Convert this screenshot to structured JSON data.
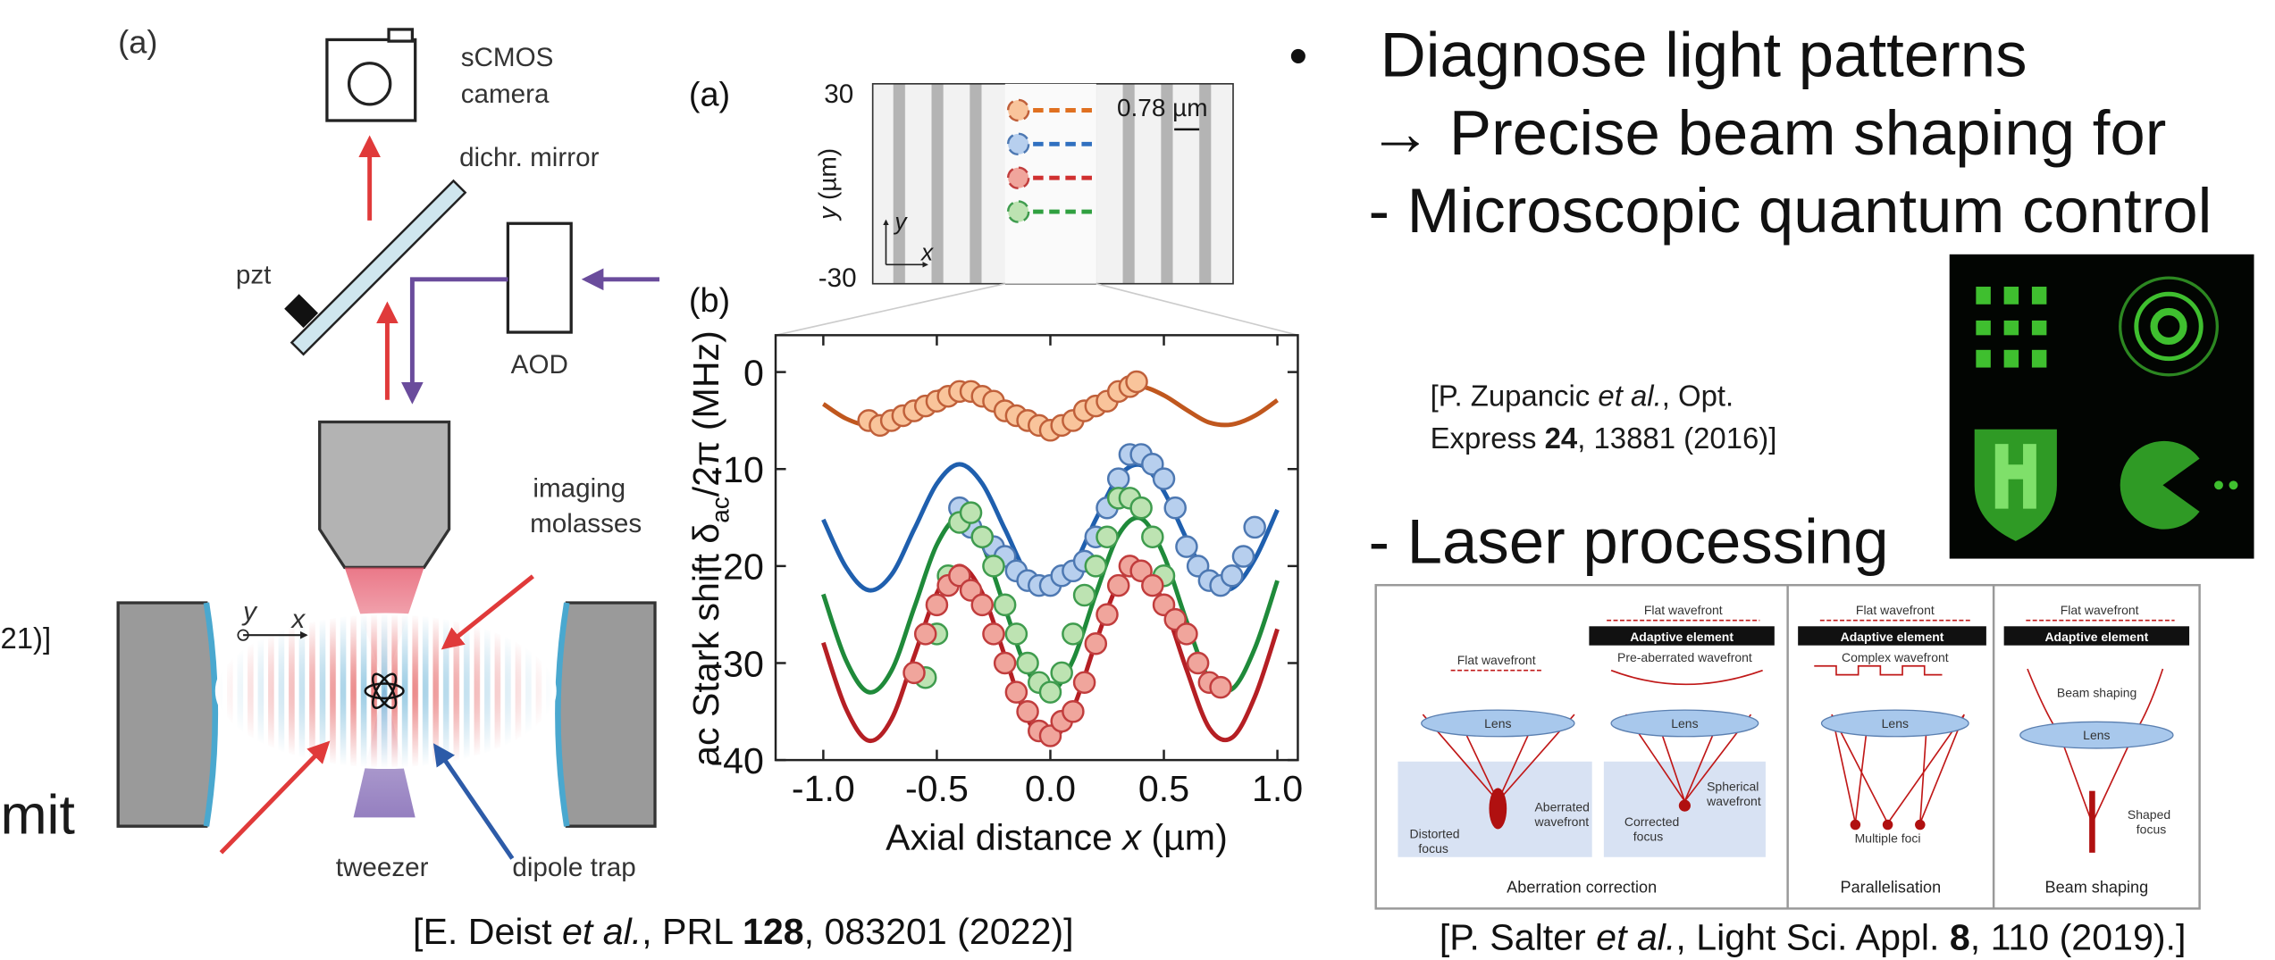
{
  "left_edge": {
    "fragment_1": "21)]",
    "fragment_2": "mit"
  },
  "schematic": {
    "panel": "(a)",
    "camera_1": "sCMOS",
    "camera_2": "camera",
    "mirror": "dichr. mirror",
    "pzt": "pzt",
    "aod": "AOD",
    "molasses_1": "imaging",
    "molasses_2": "molasses",
    "tweezer": "tweezer",
    "dipole_trap": "dipole trap",
    "axis_y": "y",
    "axis_x": "x"
  },
  "inset": {
    "panel": "(a)",
    "ytick_top": "30",
    "ytick_bottom": "-30",
    "ylabel_var": "y",
    "ylabel_unit": " (µm)",
    "spacing": "0.78 µm",
    "axis_y": "y",
    "axis_x": "x"
  },
  "chart_data": {
    "type": "scatter",
    "panel": "(b)",
    "xlabel": [
      "Axial distance ",
      "x",
      " (µm)"
    ],
    "ylabel": [
      "ac Stark shift  δ",
      "ac",
      "/2π (MHz)"
    ],
    "xlim": [
      -1.21,
      1.09
    ],
    "ylim": [
      -40,
      3.8
    ],
    "xticks": [
      {
        "value": -1,
        "label": "-1.0"
      },
      {
        "value": -0.5,
        "label": "-0.5"
      },
      {
        "value": 0,
        "label": "0.0"
      },
      {
        "value": 0.5,
        "label": "0.5"
      },
      {
        "value": 1,
        "label": "1.0"
      }
    ],
    "yticks": [
      0,
      -10,
      -20,
      -30,
      -40
    ],
    "fit_x": [
      -1,
      -0.9,
      -0.8,
      -0.7,
      -0.6,
      -0.5,
      -0.4,
      -0.3,
      -0.2,
      -0.1,
      0,
      0.1,
      0.2,
      0.3,
      0.4,
      0.5,
      0.6,
      0.7,
      0.8,
      0.9,
      1
    ],
    "fits": [
      {
        "color": "#c0571e",
        "values": [
          -3.3,
          -4.8,
          -5.5,
          -5.0,
          -3.6,
          -2.1,
          -1.5,
          -2.1,
          -3.6,
          -5.0,
          -5.5,
          -4.8,
          -3.3,
          -1.9,
          -1.5,
          -2.4,
          -3.9,
          -5.2,
          -5.4,
          -4.5,
          -2.9
        ]
      },
      {
        "color": "#1f5fae",
        "values": [
          -15.2,
          -20.1,
          -22.5,
          -20.9,
          -16.2,
          -11.5,
          -9.5,
          -11.5,
          -16.2,
          -20.9,
          -22.5,
          -20.1,
          -15.2,
          -10.8,
          -9.6,
          -12.3,
          -17.2,
          -21.5,
          -22.3,
          -19.3,
          -14.2
        ]
      },
      {
        "color": "#1f8a3a",
        "values": [
          -22.9,
          -29.7,
          -33,
          -30.8,
          -24.3,
          -17.8,
          -15,
          -17.8,
          -24.3,
          -30.8,
          -33,
          -29.7,
          -22.9,
          -16.8,
          -15.1,
          -18.9,
          -25.7,
          -31.7,
          -32.7,
          -28.5,
          -21.5
        ]
      },
      {
        "color": "#b51f24",
        "values": [
          -27.9,
          -34.7,
          -38,
          -35.8,
          -29.3,
          -22.8,
          -20,
          -22.8,
          -29.3,
          -35.8,
          -38,
          -34.7,
          -27.9,
          -21.8,
          -20.1,
          -23.9,
          -30.7,
          -36.7,
          -37.7,
          -33.5,
          -26.5
        ]
      }
    ],
    "series": [
      {
        "color": "#f9c49b",
        "edge": "#c0603a",
        "x": [
          -0.8,
          -0.75,
          -0.7,
          -0.65,
          -0.6,
          -0.55,
          -0.5,
          -0.45,
          -0.4,
          -0.35,
          -0.3,
          -0.25,
          -0.2,
          -0.15,
          -0.1,
          -0.05,
          0,
          0.05,
          0.1,
          0.15,
          0.2,
          0.25,
          0.3,
          0.35,
          0.38
        ],
        "values": [
          -5,
          -5.5,
          -5,
          -4.5,
          -4,
          -3.5,
          -3,
          -2.5,
          -2,
          -2,
          -2.5,
          -3,
          -4,
          -4.5,
          -5,
          -5.5,
          -6,
          -5.5,
          -5,
          -4,
          -3.5,
          -3,
          -2,
          -1.5,
          -1
        ]
      },
      {
        "color": "#b7cfee",
        "edge": "#4d78b2",
        "x": [
          -0.4,
          -0.35,
          -0.3,
          -0.25,
          -0.2,
          -0.15,
          -0.1,
          -0.05,
          0,
          0.05,
          0.1,
          0.15,
          0.2,
          0.25,
          0.3,
          0.35,
          0.4,
          0.45,
          0.5,
          0.55,
          0.6,
          0.65,
          0.7,
          0.75,
          0.8,
          0.85,
          0.9
        ],
        "values": [
          -14,
          -16,
          -17,
          -18,
          -19,
          -20.5,
          -21.5,
          -22,
          -22,
          -21,
          -20.5,
          -19.5,
          -17,
          -14,
          -11,
          -8.5,
          -8.5,
          -9.5,
          -11,
          -14,
          -18,
          -20,
          -21.5,
          -22,
          -21,
          -19,
          -16
        ]
      },
      {
        "color": "#bde3b2",
        "edge": "#3f9c4e",
        "x": [
          -0.55,
          -0.5,
          -0.45,
          -0.4,
          -0.35,
          -0.3,
          -0.25,
          -0.2,
          -0.15,
          -0.1,
          -0.05,
          0,
          0.05,
          0.1,
          0.15,
          0.2,
          0.25,
          0.3,
          0.35,
          0.4,
          0.45,
          0.5
        ],
        "values": [
          -31.5,
          -27,
          -21,
          -15.5,
          -14.5,
          -17,
          -20,
          -24,
          -27,
          -30,
          -32,
          -33,
          -31,
          -27,
          -23,
          -20,
          -17,
          -13,
          -13,
          -14,
          -17,
          -21
        ]
      },
      {
        "color": "#f0a59c",
        "edge": "#c13d3d",
        "x": [
          -0.6,
          -0.55,
          -0.5,
          -0.45,
          -0.4,
          -0.35,
          -0.3,
          -0.25,
          -0.2,
          -0.15,
          -0.1,
          -0.05,
          0,
          0.05,
          0.1,
          0.15,
          0.2,
          0.25,
          0.3,
          0.35,
          0.4,
          0.45,
          0.5,
          0.55,
          0.6,
          0.65,
          0.7,
          0.75
        ],
        "values": [
          -31,
          -27,
          -24,
          -22,
          -21,
          -22.5,
          -24,
          -27,
          -30,
          -33,
          -35,
          -37,
          -37.5,
          -36,
          -35,
          -32,
          -28,
          -25,
          -22,
          -20,
          -20.5,
          -22,
          -24,
          -25.5,
          -27,
          -30,
          -32,
          -32.5
        ]
      }
    ]
  },
  "citation_deist": [
    "[E. Deist ",
    "et al.",
    ", PRL ",
    "128",
    ", 083201 (2022)]"
  ],
  "bullets": {
    "bullet": "•",
    "line_1": "Diagnose light patterns",
    "line_2": "→ Precise beam shaping for",
    "line_3": "- Microscopic quantum control",
    "line_4": "- Laser processing"
  },
  "citation_zupancic": {
    "line_1": [
      "[P. Zupancic ",
      "et al.",
      ", Opt."
    ],
    "line_2": [
      "Express ",
      "24",
      ", 13881 (2016)]"
    ]
  },
  "laser_figure": {
    "flat_1": "Flat wavefront",
    "flat_2": "Flat wavefront",
    "flat_3": "Flat wavefront",
    "flat_4": "Flat wavefront",
    "adaptive_1": "Adaptive element",
    "adaptive_2": "Adaptive element",
    "adaptive_3": "Adaptive element",
    "pre_aberrated": "Pre-aberrated wavefront",
    "complex": "Complex wavefront",
    "lens_1": "Lens",
    "lens_2": "Lens",
    "lens_3": "Lens",
    "lens_4": "Lens",
    "distorted_1": "Distorted",
    "distorted_2": "focus",
    "aberrated_1": "Aberrated",
    "aberrated_2": "wavefront",
    "corrected_1": "Corrected",
    "corrected_2": "focus",
    "spherical_1": "Spherical",
    "spherical_2": "wavefront",
    "multiple": "Multiple foci",
    "beam_shaping_label": "Beam shaping",
    "shaped_1": "Shaped",
    "shaped_2": "focus",
    "caption_1": "Aberration correction",
    "caption_2": "Parallelisation",
    "caption_3": "Beam shaping"
  },
  "citation_salter": [
    "[P. Salter ",
    "et al.",
    ", Light Sci. Appl. ",
    "8",
    ", 110 (2019).]"
  ]
}
